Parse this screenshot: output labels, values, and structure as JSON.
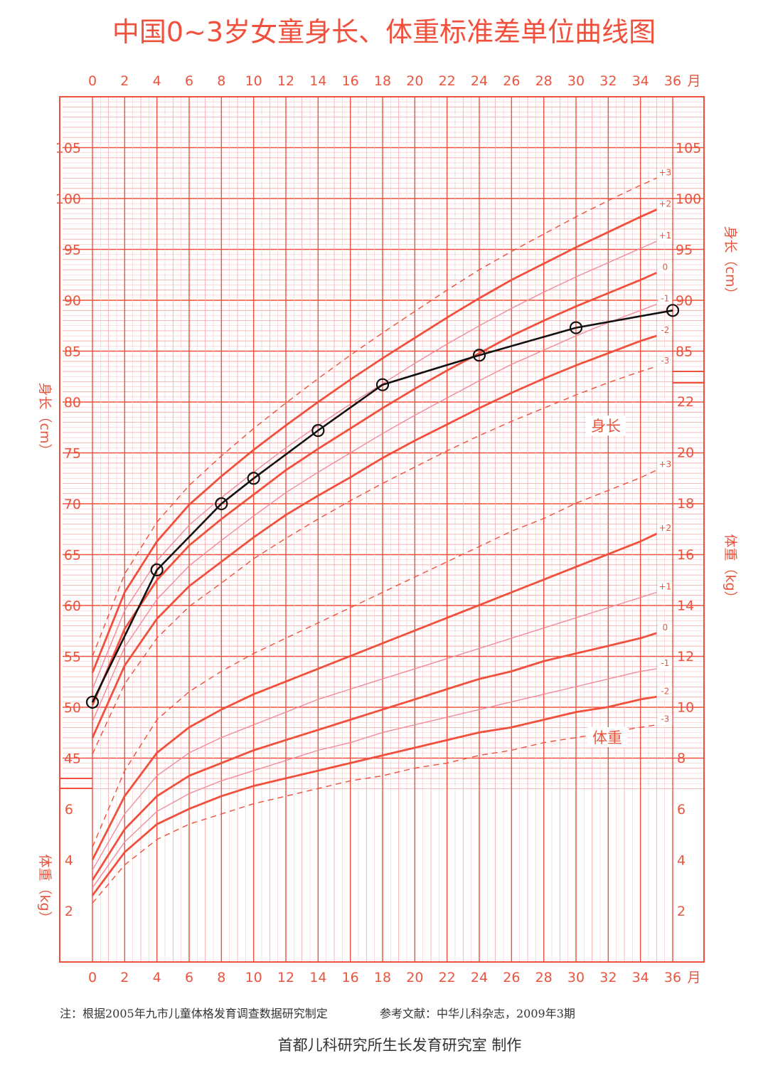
{
  "colors": {
    "grid_major": "#f0503c",
    "grid_minor": "#f6a6a8",
    "grid_fine": "#f9c6c8",
    "curve": "#f0503c",
    "curve_thin": "#f08c9a",
    "patient": "#111111",
    "text": "#e8553f",
    "note": "#333333"
  },
  "chart_data": {
    "type": "line",
    "title": "中国0~3岁女童身长、体重标准差单位曲线图",
    "x": {
      "range": [
        0,
        36
      ],
      "ticks": [
        0,
        2,
        4,
        6,
        8,
        10,
        12,
        14,
        16,
        18,
        20,
        22,
        24,
        26,
        28,
        30,
        32,
        34,
        36
      ],
      "unit": "月"
    },
    "length_axis": {
      "label": "身长（cm）",
      "range": [
        42,
        110
      ],
      "ticks_left": [
        45,
        50,
        55,
        60,
        65,
        70,
        75,
        80,
        85,
        90,
        95,
        100,
        105
      ],
      "ticks_right": [
        85,
        90,
        95,
        100,
        105
      ]
    },
    "weight_axis": {
      "label": "体重（kg）",
      "range": [
        0,
        24
      ],
      "ticks_left": [
        2,
        4,
        6
      ],
      "ticks_right": [
        2,
        4,
        6,
        8,
        10,
        12,
        14,
        16,
        18,
        20,
        22
      ]
    },
    "panel_labels": {
      "length": "身长",
      "weight": "体重"
    },
    "sd_labels": [
      "+3",
      "+2",
      "+1",
      "0",
      "-1",
      "-2",
      "-3"
    ],
    "length_curves": {
      "x": [
        0,
        2,
        4,
        6,
        8,
        10,
        12,
        14,
        16,
        18,
        20,
        22,
        24,
        26,
        28,
        30,
        32,
        34,
        35
      ],
      "series": [
        {
          "sd": "+3",
          "values": [
            55.0,
            63.1,
            68.2,
            71.8,
            74.7,
            77.4,
            79.9,
            82.3,
            84.6,
            86.8,
            88.9,
            91.0,
            93.0,
            94.8,
            96.5,
            98.2,
            99.8,
            101.3,
            102.0
          ]
        },
        {
          "sd": "+2",
          "values": [
            53.4,
            61.3,
            66.3,
            69.9,
            72.7,
            75.3,
            77.7,
            80.0,
            82.2,
            84.3,
            86.3,
            88.3,
            90.2,
            92.0,
            93.6,
            95.2,
            96.7,
            98.2,
            98.9
          ]
        },
        {
          "sd": "+1",
          "values": [
            51.8,
            59.5,
            64.4,
            67.9,
            70.6,
            73.1,
            75.5,
            77.7,
            79.8,
            81.8,
            83.8,
            85.7,
            87.5,
            89.2,
            90.8,
            92.3,
            93.7,
            95.1,
            95.8
          ]
        },
        {
          "sd": "0",
          "values": [
            50.2,
            57.7,
            62.5,
            65.9,
            68.5,
            70.9,
            73.3,
            75.4,
            77.4,
            79.4,
            81.3,
            83.1,
            84.8,
            86.5,
            88.0,
            89.4,
            90.7,
            92.0,
            92.7
          ]
        },
        {
          "sd": "-1",
          "values": [
            48.6,
            55.9,
            60.6,
            63.9,
            66.4,
            68.8,
            71.1,
            73.1,
            75.0,
            76.9,
            78.7,
            80.4,
            82.1,
            83.7,
            85.1,
            86.5,
            87.8,
            89.0,
            89.6
          ]
        },
        {
          "sd": "-2",
          "values": [
            47.0,
            54.1,
            58.7,
            61.9,
            64.3,
            66.7,
            68.9,
            70.8,
            72.6,
            74.5,
            76.2,
            77.8,
            79.4,
            80.9,
            82.3,
            83.6,
            84.8,
            86.0,
            86.5
          ]
        },
        {
          "sd": "-3",
          "values": [
            45.4,
            52.3,
            56.8,
            59.9,
            62.2,
            64.6,
            66.6,
            68.5,
            70.3,
            72.0,
            73.6,
            75.2,
            76.7,
            78.1,
            79.4,
            80.7,
            81.9,
            83.0,
            83.5
          ]
        }
      ]
    },
    "weight_curves": {
      "x": [
        0,
        2,
        4,
        6,
        8,
        10,
        12,
        14,
        16,
        18,
        20,
        22,
        24,
        26,
        28,
        30,
        32,
        34,
        35
      ],
      "series": [
        {
          "sd": "+3",
          "values": [
            4.5,
            7.5,
            9.5,
            10.6,
            11.4,
            12.1,
            12.7,
            13.3,
            13.9,
            14.5,
            15.1,
            15.7,
            16.3,
            16.9,
            17.4,
            18.0,
            18.5,
            19.0,
            19.3
          ]
        },
        {
          "sd": "+2",
          "values": [
            4.0,
            6.5,
            8.2,
            9.2,
            9.9,
            10.5,
            11.0,
            11.5,
            12.0,
            12.5,
            13.0,
            13.5,
            14.0,
            14.5,
            15.0,
            15.5,
            16.0,
            16.5,
            16.8
          ]
        },
        {
          "sd": "+1",
          "values": [
            3.6,
            5.8,
            7.3,
            8.2,
            8.8,
            9.3,
            9.8,
            10.3,
            10.7,
            11.1,
            11.5,
            11.9,
            12.3,
            12.7,
            13.1,
            13.5,
            13.9,
            14.3,
            14.5
          ]
        },
        {
          "sd": "0",
          "values": [
            3.2,
            5.2,
            6.5,
            7.3,
            7.8,
            8.3,
            8.7,
            9.1,
            9.5,
            9.9,
            10.3,
            10.7,
            11.1,
            11.4,
            11.8,
            12.1,
            12.4,
            12.7,
            12.9
          ]
        },
        {
          "sd": "-1",
          "values": [
            2.9,
            4.7,
            5.9,
            6.6,
            7.1,
            7.5,
            7.9,
            8.3,
            8.6,
            9.0,
            9.3,
            9.6,
            9.9,
            10.2,
            10.5,
            10.8,
            11.1,
            11.4,
            11.5
          ]
        },
        {
          "sd": "-2",
          "values": [
            2.6,
            4.3,
            5.4,
            6.0,
            6.5,
            6.9,
            7.2,
            7.5,
            7.8,
            8.1,
            8.4,
            8.7,
            9.0,
            9.2,
            9.5,
            9.8,
            10.0,
            10.3,
            10.4
          ]
        },
        {
          "sd": "-3",
          "values": [
            2.3,
            3.8,
            4.8,
            5.4,
            5.8,
            6.2,
            6.5,
            6.8,
            7.1,
            7.3,
            7.6,
            7.8,
            8.1,
            8.3,
            8.6,
            8.8,
            9.0,
            9.2,
            9.3
          ]
        }
      ]
    },
    "patient_length": {
      "x": [
        0,
        4,
        8,
        10,
        14,
        18,
        24,
        30,
        36
      ],
      "values": [
        50.5,
        63.5,
        70.0,
        72.5,
        77.2,
        81.7,
        84.6,
        87.3,
        89.0
      ]
    }
  },
  "footer": {
    "note": "注：根据2005年九市儿童体格发育调查数据研究制定",
    "reference": "参考文献：中华儿科杂志，2009年3期",
    "credit": "首都儿科研究所生长发育研究室  制作"
  }
}
